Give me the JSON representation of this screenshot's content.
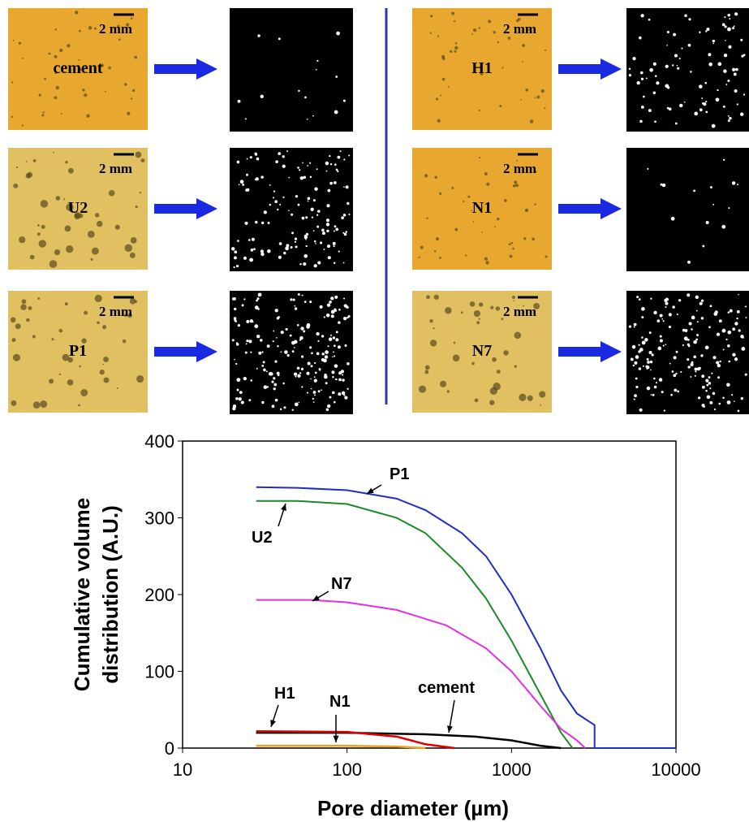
{
  "panels": [
    {
      "label": "cement",
      "scale": "2 mm"
    },
    {
      "label": "U2",
      "scale": "2 mm"
    },
    {
      "label": "P1",
      "scale": "2 mm"
    },
    {
      "label": "H1",
      "scale": "2 mm"
    },
    {
      "label": "N1",
      "scale": "2 mm"
    },
    {
      "label": "N7",
      "scale": "2 mm"
    }
  ],
  "chart_data": {
    "type": "line",
    "xlabel": "Pore diameter (µm)",
    "ylabel": [
      "Cumulative volume",
      "distribution (A.U.)"
    ],
    "xscale": "log",
    "xlim": [
      10,
      10000
    ],
    "xticks": [
      10,
      100,
      1000,
      10000
    ],
    "ylim": [
      0,
      400
    ],
    "yticks": [
      0,
      100,
      200,
      300,
      400
    ],
    "series": [
      {
        "name": "P1",
        "color": "#1f2fbf",
        "x": [
          28,
          50,
          100,
          200,
          300,
          500,
          700,
          1000,
          1500,
          2000,
          2500,
          3200,
          3200,
          10000
        ],
        "values": [
          340,
          339,
          336,
          325,
          310,
          280,
          250,
          200,
          130,
          75,
          45,
          30,
          0,
          0
        ]
      },
      {
        "name": "U2",
        "color": "#1a8a2a",
        "x": [
          28,
          50,
          100,
          200,
          300,
          500,
          700,
          1000,
          1500,
          2000,
          2350
        ],
        "values": [
          322,
          322,
          318,
          300,
          280,
          235,
          195,
          140,
          70,
          20,
          0
        ]
      },
      {
        "name": "N7",
        "color": "#e030e0",
        "x": [
          28,
          60,
          100,
          200,
          400,
          700,
          1000,
          1500,
          2000,
          2500,
          2800
        ],
        "values": [
          193,
          193,
          190,
          180,
          160,
          130,
          100,
          55,
          25,
          10,
          0
        ]
      },
      {
        "name": "cement",
        "color": "#000000",
        "x": [
          28,
          100,
          300,
          600,
          1000,
          1500,
          2000
        ],
        "values": [
          20,
          20,
          18,
          15,
          10,
          3,
          0
        ]
      },
      {
        "name": "H1",
        "color": "#e00000",
        "x": [
          28,
          100,
          200,
          300,
          450
        ],
        "values": [
          22,
          21,
          15,
          5,
          0
        ]
      },
      {
        "name": "N1",
        "color": "#f0a020",
        "x": [
          28,
          100,
          200,
          300
        ],
        "values": [
          3,
          3,
          2,
          0
        ]
      }
    ]
  }
}
